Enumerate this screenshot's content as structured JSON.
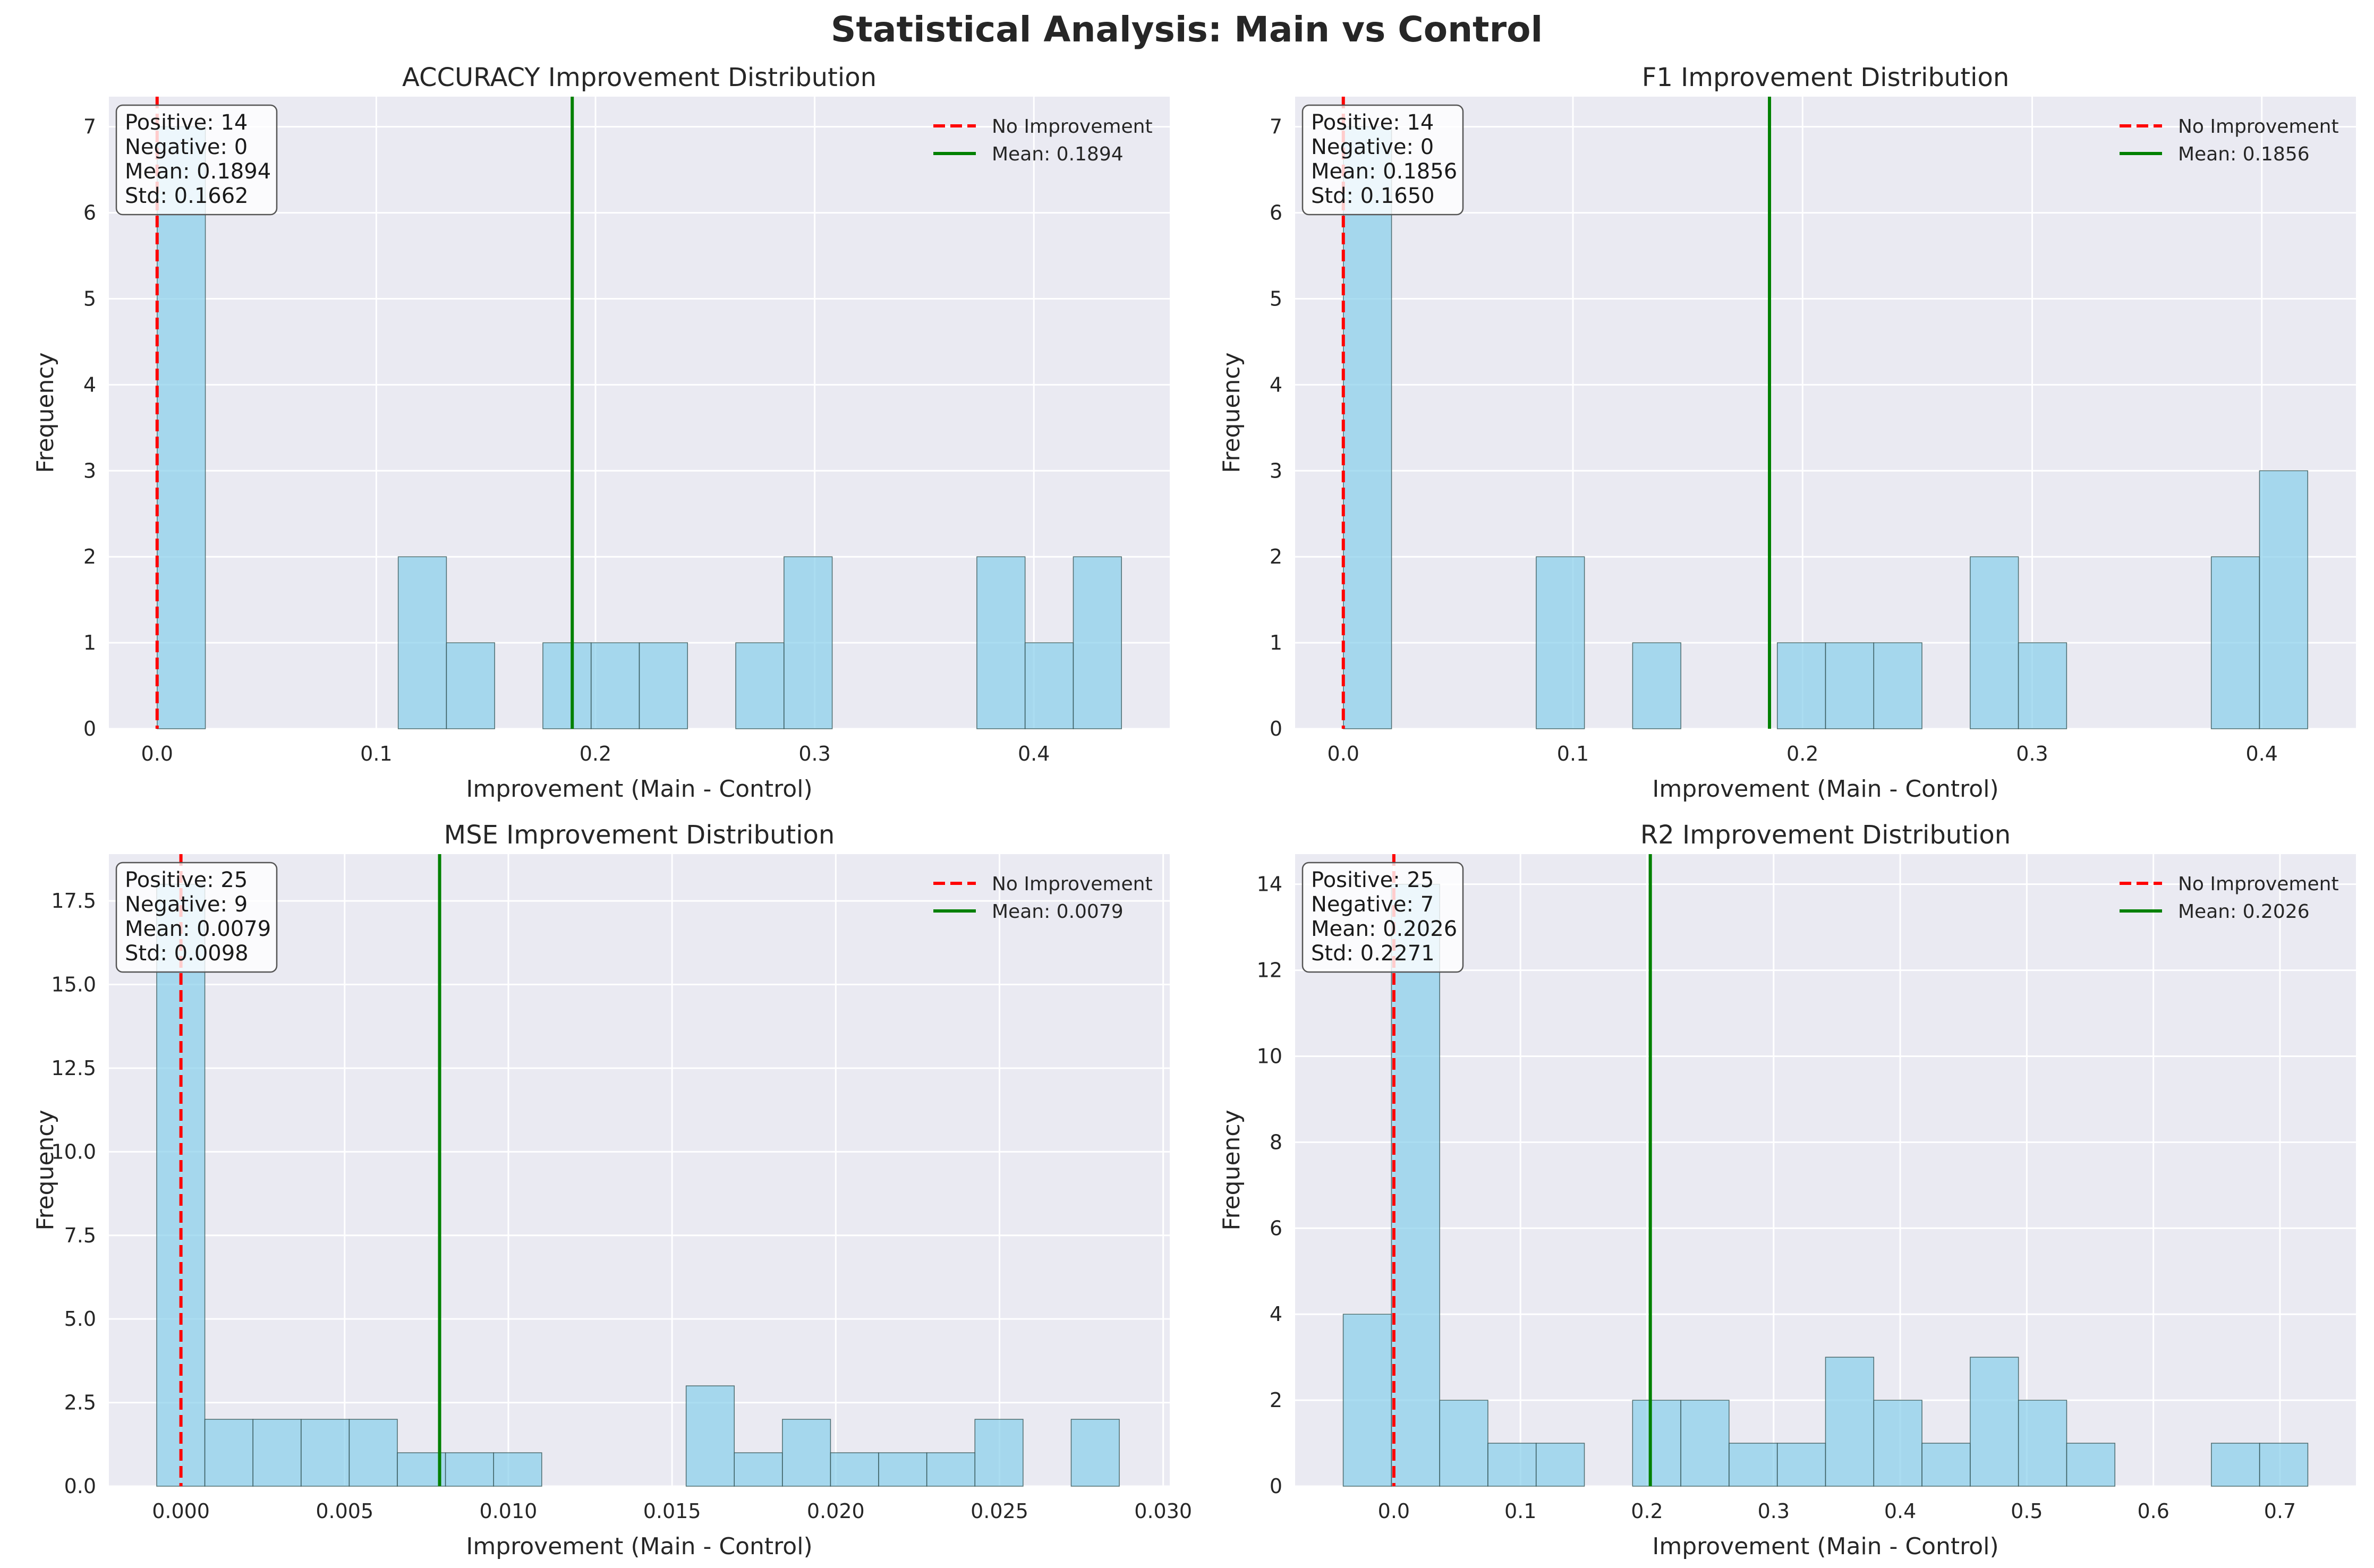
{
  "figure": {
    "title": "Statistical Analysis: Main vs Control"
  },
  "colors": {
    "background": "#eaeaf2",
    "grid": "#ffffff",
    "bar": "#87ceeb",
    "bar_edge": "#2f4f4f",
    "zero_line": "#ff0000",
    "mean_line": "#008000"
  },
  "chart_data": [
    {
      "type": "bar",
      "title": "ACCURACY Improvement Distribution",
      "xlabel": "Improvement (Main - Control)",
      "ylabel": "Frequency",
      "xlim": [
        -0.022,
        0.462
      ],
      "ylim": [
        0,
        7.35
      ],
      "xticks": [
        0,
        0.1,
        0.2,
        0.3,
        0.4
      ],
      "xtick_labels": [
        "0.0",
        "0.1",
        "0.2",
        "0.3",
        "0.4"
      ],
      "yticks": [
        0,
        1,
        2,
        3,
        4,
        5,
        6,
        7
      ],
      "ytick_labels": [
        "0",
        "1",
        "2",
        "3",
        "4",
        "5",
        "6",
        "7"
      ],
      "bin_start": 0.0,
      "bin_width": 0.022,
      "counts": [
        7,
        0,
        0,
        0,
        0,
        2,
        1,
        0,
        1,
        1,
        1,
        0,
        1,
        2,
        0,
        0,
        0,
        2,
        1,
        2
      ],
      "zero_line": 0,
      "mean": 0.1894,
      "legend": [
        "No Improvement",
        "Mean: 0.1894"
      ],
      "stats": [
        "Positive: 14",
        "Negative: 0",
        "Mean: 0.1894",
        "Std: 0.1662"
      ],
      "grid": true,
      "legend_position": "top-right"
    },
    {
      "type": "bar",
      "title": "F1 Improvement Distribution",
      "xlabel": "Improvement (Main - Control)",
      "ylabel": "Frequency",
      "xlim": [
        -0.021,
        0.441
      ],
      "ylim": [
        0,
        7.35
      ],
      "xticks": [
        0,
        0.1,
        0.2,
        0.3,
        0.4
      ],
      "xtick_labels": [
        "0.0",
        "0.1",
        "0.2",
        "0.3",
        "0.4"
      ],
      "yticks": [
        0,
        1,
        2,
        3,
        4,
        5,
        6,
        7
      ],
      "ytick_labels": [
        "0",
        "1",
        "2",
        "3",
        "4",
        "5",
        "6",
        "7"
      ],
      "bin_start": 0.0,
      "bin_width": 0.021,
      "counts": [
        7,
        0,
        0,
        0,
        2,
        0,
        1,
        0,
        0,
        1,
        1,
        1,
        0,
        2,
        1,
        0,
        0,
        0,
        2,
        3
      ],
      "zero_line": 0,
      "mean": 0.1856,
      "legend": [
        "No Improvement",
        "Mean: 0.1856"
      ],
      "stats": [
        "Positive: 14",
        "Negative: 0",
        "Mean: 0.1856",
        "Std: 0.1650"
      ],
      "grid": true,
      "legend_position": "top-right"
    },
    {
      "type": "bar",
      "title": "MSE Improvement Distribution",
      "xlabel": "Improvement (Main - Control)",
      "ylabel": "Frequency",
      "xlim": [
        -0.0022,
        0.0302
      ],
      "ylim": [
        0,
        18.9
      ],
      "xticks": [
        0,
        0.005,
        0.01,
        0.015,
        0.02,
        0.025,
        0.03
      ],
      "xtick_labels": [
        "0.000",
        "0.005",
        "0.010",
        "0.015",
        "0.020",
        "0.025",
        "0.030"
      ],
      "yticks": [
        0,
        2.5,
        5,
        7.5,
        10,
        12.5,
        15,
        17.5
      ],
      "ytick_labels": [
        "0.0",
        "2.5",
        "5.0",
        "7.5",
        "10.0",
        "12.5",
        "15.0",
        "17.5"
      ],
      "bin_start": -0.00074,
      "bin_width": 0.00147,
      "counts": [
        18,
        2,
        2,
        2,
        2,
        1,
        1,
        1,
        0,
        0,
        0,
        3,
        1,
        2,
        1,
        1,
        1,
        2,
        0,
        2
      ],
      "zero_line": 0,
      "mean": 0.0079,
      "legend": [
        "No Improvement",
        "Mean: 0.0079"
      ],
      "stats": [
        "Positive: 25",
        "Negative: 9",
        "Mean: 0.0079",
        "Std: 0.0098"
      ],
      "grid": true,
      "legend_position": "top-right"
    },
    {
      "type": "bar",
      "title": "R2 Improvement Distribution",
      "xlabel": "Improvement (Main - Control)",
      "ylabel": "Frequency",
      "xlim": [
        -0.078,
        0.76
      ],
      "ylim": [
        0,
        14.7
      ],
      "xticks": [
        0,
        0.1,
        0.2,
        0.3,
        0.4,
        0.5,
        0.6,
        0.7
      ],
      "xtick_labels": [
        "0.0",
        "0.1",
        "0.2",
        "0.3",
        "0.4",
        "0.5",
        "0.6",
        "0.7"
      ],
      "yticks": [
        0,
        2,
        4,
        6,
        8,
        10,
        12,
        14
      ],
      "ytick_labels": [
        "0",
        "2",
        "4",
        "6",
        "8",
        "10",
        "12",
        "14"
      ],
      "bin_start": -0.04,
      "bin_width": 0.0381,
      "counts": [
        4,
        14,
        2,
        1,
        1,
        0,
        2,
        2,
        1,
        1,
        3,
        2,
        1,
        3,
        2,
        1,
        0,
        0,
        1,
        1
      ],
      "zero_line": 0,
      "mean": 0.2026,
      "legend": [
        "No Improvement",
        "Mean: 0.2026"
      ],
      "stats": [
        "Positive: 25",
        "Negative: 7",
        "Mean: 0.2026",
        "Std: 0.2271"
      ],
      "grid": true,
      "legend_position": "top-right"
    }
  ]
}
